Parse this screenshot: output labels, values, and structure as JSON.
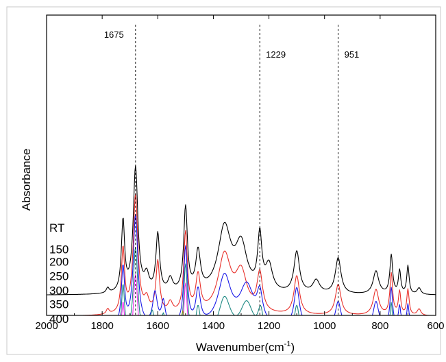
{
  "chart_data": {
    "type": "line",
    "xlabel": "Wavenumber(cm",
    "xlabel_sup": "-1",
    "xlabel_close": ")",
    "ylabel": "Absorbance",
    "xlim": [
      2000,
      600
    ],
    "x_reversed": true,
    "x_ticks": [
      2000,
      1800,
      1600,
      1400,
      1200,
      1000,
      800,
      600
    ],
    "y_ticks_shown": false,
    "grid": false,
    "annotations": [
      {
        "label": "1675",
        "x": 1680
      },
      {
        "label": "1229",
        "x": 1233
      },
      {
        "label": "951",
        "x": 951
      }
    ],
    "series": [
      {
        "name": "RT",
        "color": "#000000",
        "label_y": 0.722,
        "baseline": 0.683,
        "peaks": [
          [
            1780,
            0.04,
            6
          ],
          [
            1725,
            0.55,
            7
          ],
          [
            1680,
            0.97,
            10
          ],
          [
            1640,
            0.12,
            10
          ],
          [
            1600,
            0.45,
            8
          ],
          [
            1555,
            0.1,
            10
          ],
          [
            1500,
            0.65,
            8
          ],
          [
            1455,
            0.3,
            10
          ],
          [
            1360,
            0.5,
            28
          ],
          [
            1300,
            0.35,
            25
          ],
          [
            1233,
            0.42,
            9
          ],
          [
            1200,
            0.2,
            15
          ],
          [
            1100,
            0.32,
            12
          ],
          [
            1030,
            0.1,
            15
          ],
          [
            951,
            0.28,
            12
          ],
          [
            815,
            0.18,
            12
          ],
          [
            760,
            0.3,
            6
          ],
          [
            730,
            0.18,
            5
          ],
          [
            700,
            0.22,
            5
          ],
          [
            660,
            0.05,
            8
          ]
        ]
      },
      {
        "name": "150",
        "color": "#e8302a",
        "label_y": 0.793,
        "baseline": 0.753,
        "peaks": [
          [
            1780,
            0.04,
            6
          ],
          [
            1725,
            0.5,
            7
          ],
          [
            1680,
            0.92,
            10
          ],
          [
            1640,
            0.1,
            10
          ],
          [
            1600,
            0.4,
            8
          ],
          [
            1555,
            0.08,
            10
          ],
          [
            1500,
            0.62,
            8
          ],
          [
            1455,
            0.28,
            10
          ],
          [
            1360,
            0.45,
            28
          ],
          [
            1300,
            0.3,
            25
          ],
          [
            1233,
            0.3,
            12
          ],
          [
            1100,
            0.3,
            12
          ],
          [
            951,
            0.24,
            12
          ],
          [
            815,
            0.2,
            12
          ],
          [
            760,
            0.32,
            6
          ],
          [
            730,
            0.18,
            5
          ],
          [
            700,
            0.2,
            5
          ],
          [
            660,
            0.05,
            8
          ]
        ]
      },
      {
        "name": "200",
        "color": "#1a1ae8",
        "label_y": 0.835,
        "baseline": 0.793,
        "peaks": [
          [
            1780,
            0.04,
            6
          ],
          [
            1725,
            0.45,
            7
          ],
          [
            1680,
            0.86,
            10
          ],
          [
            1610,
            0.25,
            10
          ],
          [
            1580,
            0.18,
            8
          ],
          [
            1500,
            0.6,
            8
          ],
          [
            1455,
            0.26,
            10
          ],
          [
            1360,
            0.38,
            28
          ],
          [
            1280,
            0.3,
            30
          ],
          [
            1233,
            0.22,
            12
          ],
          [
            1100,
            0.3,
            12
          ],
          [
            951,
            0.2,
            12
          ],
          [
            815,
            0.2,
            12
          ],
          [
            760,
            0.3,
            6
          ],
          [
            730,
            0.16,
            5
          ],
          [
            700,
            0.18,
            5
          ]
        ]
      },
      {
        "name": "250",
        "color": "#1f8a84",
        "label_y": 0.882,
        "baseline": 0.843,
        "peaks": [
          [
            1780,
            0.04,
            6
          ],
          [
            1725,
            0.42,
            7
          ],
          [
            1680,
            0.72,
            10
          ],
          [
            1620,
            0.22,
            10
          ],
          [
            1580,
            0.2,
            8
          ],
          [
            1500,
            0.58,
            8
          ],
          [
            1455,
            0.24,
            10
          ],
          [
            1360,
            0.32,
            28
          ],
          [
            1280,
            0.28,
            30
          ],
          [
            1230,
            0.2,
            12
          ],
          [
            1100,
            0.28,
            12
          ],
          [
            951,
            0.18,
            12
          ],
          [
            815,
            0.2,
            12
          ],
          [
            760,
            0.3,
            6
          ],
          [
            730,
            0.15,
            5
          ],
          [
            700,
            0.16,
            5
          ]
        ]
      },
      {
        "name": "300",
        "color": "#ee2dee",
        "label_y": 0.93,
        "baseline": 0.891,
        "peaks": [
          [
            1780,
            0.04,
            6
          ],
          [
            1725,
            0.4,
            7
          ],
          [
            1680,
            0.62,
            10
          ],
          [
            1625,
            0.22,
            10
          ],
          [
            1580,
            0.25,
            10
          ],
          [
            1500,
            0.55,
            8
          ],
          [
            1455,
            0.2,
            10
          ],
          [
            1380,
            0.28,
            20
          ],
          [
            1300,
            0.22,
            25
          ],
          [
            1230,
            0.16,
            12
          ],
          [
            1100,
            0.24,
            12
          ],
          [
            951,
            0.14,
            12
          ],
          [
            815,
            0.18,
            12
          ],
          [
            760,
            0.28,
            6
          ],
          [
            730,
            0.14,
            5
          ],
          [
            700,
            0.14,
            5
          ]
        ]
      },
      {
        "name": "350",
        "color": "#8a8a16",
        "label_y": 0.976,
        "baseline": 0.945,
        "peaks": [
          [
            1780,
            0.04,
            6
          ],
          [
            1720,
            0.4,
            8
          ],
          [
            1675,
            0.12,
            15
          ],
          [
            1625,
            0.35,
            10
          ],
          [
            1510,
            0.48,
            10
          ],
          [
            1380,
            0.3,
            10
          ],
          [
            1300,
            0.18,
            30
          ],
          [
            1230,
            0.1,
            20
          ],
          [
            1100,
            0.1,
            15
          ],
          [
            815,
            0.1,
            12
          ],
          [
            760,
            0.12,
            8
          ]
        ]
      },
      {
        "name": "400",
        "color": "#000000",
        "label_y": 1.025,
        "baseline": 0.99,
        "peaks": [
          [
            1780,
            0.04,
            6
          ],
          [
            1710,
            0.3,
            10
          ],
          [
            1625,
            0.3,
            12
          ],
          [
            1505,
            0.3,
            10
          ],
          [
            1450,
            0.12,
            30
          ],
          [
            1380,
            0.16,
            10
          ],
          [
            1300,
            0.1,
            30
          ],
          [
            1100,
            0.06,
            20
          ],
          [
            815,
            0.06,
            15
          ],
          [
            760,
            0.08,
            10
          ]
        ]
      }
    ]
  }
}
